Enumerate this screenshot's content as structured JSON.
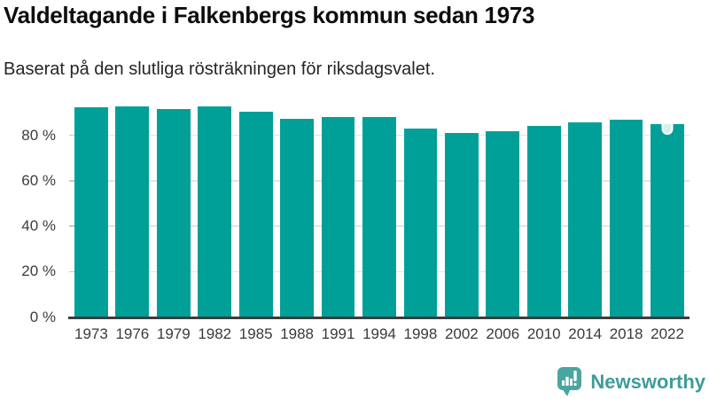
{
  "chart_data": {
    "type": "bar",
    "title": "Valdeltagande i Falkenbergs kommun sedan 1973",
    "subtitle": "Baserat på den slutliga rösträkningen för riksdagsvalet.",
    "categories": [
      "1973",
      "1976",
      "1979",
      "1982",
      "1985",
      "1988",
      "1991",
      "1994",
      "1998",
      "2002",
      "2006",
      "2010",
      "2014",
      "2018",
      "2022"
    ],
    "values": [
      92.3,
      92.6,
      91.5,
      92.6,
      90.5,
      87.1,
      87.9,
      87.9,
      82.9,
      81.0,
      81.9,
      84.2,
      85.7,
      86.8,
      84.9
    ],
    "unit": "%",
    "xlabel": "",
    "ylabel": "",
    "yticks": [
      0,
      20,
      40,
      60,
      80
    ],
    "ytick_labels": [
      "0 %",
      "20 %",
      "40 %",
      "60 %",
      "80 %"
    ],
    "ylim": [
      0,
      97
    ],
    "grid": true,
    "legend_position": "none",
    "bar_color": "#00a099",
    "latest_bar_marker": {
      "year": "2022",
      "fill": "#d7efec",
      "border": "#ffffff"
    }
  },
  "footer": {
    "brand": "Newsworthy",
    "brand_color": "#3f9c98",
    "logo_icon": "newsworthy-speech-bubble-barchart-icon",
    "logo_bubble_color": "#4aa5a0"
  }
}
